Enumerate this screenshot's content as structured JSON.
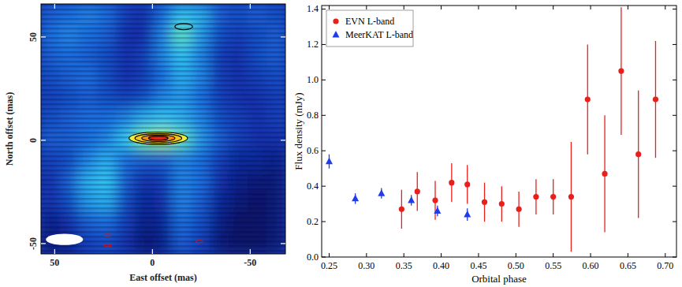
{
  "chart_data": [
    {
      "type": "heatmap",
      "xlabel": "East offset (mas)",
      "ylabel": "North offset (mas)",
      "xlim": [
        57,
        -68
      ],
      "ylim": [
        -55,
        66
      ],
      "xticks": [
        50,
        0,
        -50
      ],
      "yticks": [
        -50,
        0,
        50
      ],
      "cells": [
        [
          0.45,
          0.5,
          0.55,
          0.5,
          0.35,
          0.3,
          0.5,
          0.7,
          0.65,
          0.45,
          0.4,
          0.45,
          0.4
        ],
        [
          0.5,
          0.55,
          0.5,
          0.45,
          0.3,
          0.3,
          0.55,
          0.8,
          0.6,
          0.4,
          0.35,
          0.4,
          0.45
        ],
        [
          0.45,
          0.5,
          0.45,
          0.4,
          0.3,
          0.35,
          0.55,
          0.7,
          0.55,
          0.35,
          0.3,
          0.4,
          0.45
        ],
        [
          0.4,
          0.45,
          0.5,
          0.4,
          0.3,
          0.35,
          0.5,
          0.65,
          0.55,
          0.35,
          0.3,
          0.35,
          0.4
        ],
        [
          0.35,
          0.4,
          0.45,
          0.4,
          0.35,
          0.4,
          0.55,
          0.6,
          0.5,
          0.35,
          0.3,
          0.3,
          0.35
        ],
        [
          0.4,
          0.45,
          0.5,
          0.5,
          0.55,
          0.65,
          0.7,
          0.65,
          0.55,
          0.4,
          0.35,
          0.3,
          0.35
        ],
        [
          0.45,
          0.45,
          0.5,
          0.55,
          0.7,
          0.85,
          0.9,
          0.8,
          0.6,
          0.45,
          0.35,
          0.3,
          0.3
        ],
        [
          0.35,
          0.4,
          0.55,
          0.65,
          0.5,
          0.45,
          0.45,
          0.55,
          0.5,
          0.35,
          0.25,
          0.25,
          0.2
        ],
        [
          0.3,
          0.45,
          0.65,
          0.7,
          0.45,
          0.3,
          0.35,
          0.55,
          0.5,
          0.3,
          0.2,
          0.15,
          0.15
        ],
        [
          0.3,
          0.4,
          0.6,
          0.65,
          0.4,
          0.25,
          0.3,
          0.55,
          0.45,
          0.25,
          0.15,
          0.1,
          0.15
        ],
        [
          0.2,
          0.3,
          0.45,
          0.5,
          0.35,
          0.2,
          0.25,
          0.5,
          0.4,
          0.2,
          0.1,
          0.1,
          0.15
        ],
        [
          0.15,
          0.2,
          0.35,
          0.4,
          0.3,
          0.15,
          0.2,
          0.45,
          0.35,
          0.15,
          0.1,
          0.1,
          0.15
        ]
      ],
      "components": [
        {
          "x": -3,
          "y": 1,
          "widths": [
            30,
            24,
            17,
            10
          ],
          "heights": [
            6,
            4.5,
            3.2,
            2
          ]
        },
        {
          "x": -16,
          "y": 55,
          "widths": [
            9
          ],
          "heights": [
            3
          ]
        }
      ],
      "negative_contours": [
        {
          "x": 23,
          "y": -46,
          "width": 4,
          "height": 1.2
        },
        {
          "x": 23,
          "y": -51,
          "width": 4,
          "height": 1.2
        },
        {
          "x": -24,
          "y": -49,
          "width": 4,
          "height": 1.2
        }
      ],
      "beam": {
        "x": 45,
        "y": -48,
        "width": 19,
        "height": 5.5
      }
    },
    {
      "type": "scatter",
      "xlabel": "Orbital phase",
      "ylabel": "Flux density (mJy)",
      "xlim": [
        0.24,
        0.715
      ],
      "ylim": [
        0,
        1.42
      ],
      "xticks": [
        0.25,
        {
          "value": 0.3,
          "label": "0.30"
        },
        0.35,
        {
          "value": 0.4,
          "label": "0.40"
        },
        0.45,
        {
          "value": 0.5,
          "label": "0.50"
        },
        0.55,
        {
          "value": 0.6,
          "label": "0.60"
        },
        0.65,
        {
          "value": 0.7,
          "label": "0.70"
        }
      ],
      "yticks": [
        {
          "value": 0,
          "label": "0.0"
        },
        0.2,
        0.4,
        0.6,
        0.8,
        {
          "value": 1,
          "label": "1.0"
        },
        1.2,
        1.4
      ],
      "legend": "upper left",
      "grid": false,
      "series": [
        {
          "name": "EVN L-band",
          "color": "#e8201c",
          "marker": "circle",
          "x": [
            0.347,
            0.368,
            0.392,
            0.414,
            0.435,
            0.458,
            0.481,
            0.504,
            0.527,
            0.55,
            0.574,
            0.596,
            0.619,
            0.641,
            0.664,
            0.687
          ],
          "values": [
            0.27,
            0.37,
            0.32,
            0.42,
            0.41,
            0.31,
            0.3,
            0.27,
            0.34,
            0.34,
            0.34,
            0.89,
            0.47,
            1.05,
            0.58,
            0.89
          ],
          "errors": [
            0.11,
            0.11,
            0.11,
            0.11,
            0.11,
            0.11,
            0.1,
            0.1,
            0.1,
            0.1,
            0.31,
            0.31,
            0.33,
            0.36,
            0.36,
            0.33
          ]
        },
        {
          "name": "MeerKAT L-band",
          "color": "#1f3ce8",
          "marker": "triangle",
          "x": [
            0.25,
            0.285,
            0.32,
            0.36,
            0.395,
            0.435
          ],
          "values": [
            0.54,
            0.33,
            0.36,
            0.32,
            0.26,
            0.24
          ],
          "errors": [
            0.04,
            0.03,
            0.03,
            0.03,
            0.03,
            0.035
          ]
        }
      ]
    }
  ]
}
